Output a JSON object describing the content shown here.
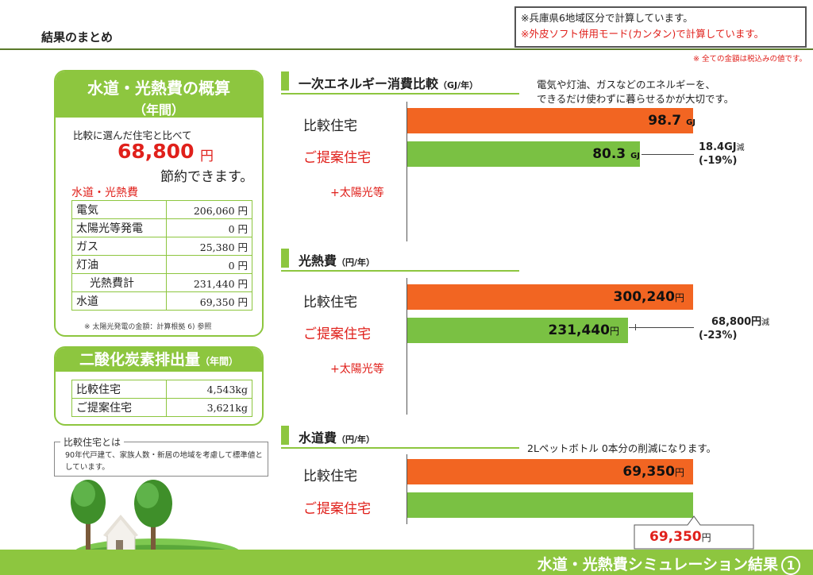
{
  "header": {
    "title": "結果のまとめ",
    "note_line1": "※兵庫県6地域区分で計算しています。",
    "note_line2": "※外皮ソフト併用モード(カンタン)で計算しています。",
    "tax_note": "※ 全ての金額は税込みの値です。"
  },
  "utilities": {
    "title": "水道・光熱費の概算",
    "subtitle": "（年間）",
    "compare_text": "比較に選んだ住宅と比べて",
    "saving_value": "68,800",
    "saving_unit": "円",
    "saving_suffix": "節約できます。",
    "section_label": "水道・光熱費",
    "rows": [
      {
        "label": "電気",
        "value": "206,060 円"
      },
      {
        "label": "太陽光等発電",
        "value": "0 円"
      },
      {
        "label": "ガス",
        "value": "25,380 円"
      },
      {
        "label": "灯油",
        "value": "0 円"
      },
      {
        "label": "光熱費計",
        "value": "231,440 円"
      },
      {
        "label": "水道",
        "value": "69,350 円"
      }
    ],
    "footnote": "※ 太陽光発電の金額：計算根拠 6) 参照"
  },
  "co2": {
    "title": "二酸化炭素排出量",
    "subtitle": "（年間）",
    "rows": [
      {
        "label": "比較住宅",
        "value": "4,543kg"
      },
      {
        "label": "ご提案住宅",
        "value": "3,621kg"
      }
    ]
  },
  "definition": {
    "title": "比較住宅とは",
    "text": "90年代戸建て、家族人数・新居の地域を考慮して標準値としています。"
  },
  "charts": {
    "energy": {
      "title": "一次エネルギー消費比較",
      "unit": "（GJ/年）",
      "description_line1": "電気や灯油、ガスなどのエネルギーを、",
      "description_line2": "できるだけ使わずに暮らせるかが大切です。",
      "compare_label": "比較住宅",
      "proposal_label": "ご提案住宅",
      "solar_label": "+太陽光等",
      "compare_value_text": "98.7",
      "proposal_value_text": "80.3",
      "value_unit": "GJ",
      "diff_text": "18.4GJ",
      "diff_suffix": "減",
      "diff_percent": "(-19%)"
    },
    "utility_cost": {
      "title": "光熱費",
      "unit": "（円/年）",
      "compare_label": "比較住宅",
      "proposal_label": "ご提案住宅",
      "solar_label": "+太陽光等",
      "compare_value_text": "300,240",
      "proposal_value_text": "231,440",
      "value_unit": "円",
      "diff_text": "68,800円",
      "diff_suffix": "減",
      "diff_percent": "(-23%)"
    },
    "water": {
      "title": "水道費",
      "unit": "（円/年）",
      "description": "2Lペットボトル 0本分の削減になります。",
      "compare_label": "比較住宅",
      "proposal_label": "ご提案住宅",
      "compare_value_text": "69,350",
      "proposal_value_text": "69,350",
      "value_unit": "円"
    }
  },
  "chart_data": [
    {
      "type": "bar",
      "title": "一次エネルギー消費比較",
      "categories": [
        "比較住宅",
        "ご提案住宅"
      ],
      "values": [
        98.7,
        80.3
      ],
      "unit": "GJ/年"
    },
    {
      "type": "bar",
      "title": "光熱費",
      "categories": [
        "比較住宅",
        "ご提案住宅"
      ],
      "values": [
        300240,
        231440
      ],
      "unit": "円/年"
    },
    {
      "type": "bar",
      "title": "水道費",
      "categories": [
        "比較住宅",
        "ご提案住宅"
      ],
      "values": [
        69350,
        69350
      ],
      "unit": "円/年"
    }
  ],
  "footer": {
    "title": "水道・光熱費シミュレーション結果",
    "page_number": "1"
  },
  "colors": {
    "brand_green": "#8dc63f",
    "bar_green": "#7ac143",
    "bar_orange": "#f26522",
    "accent_red": "#e0201b"
  }
}
